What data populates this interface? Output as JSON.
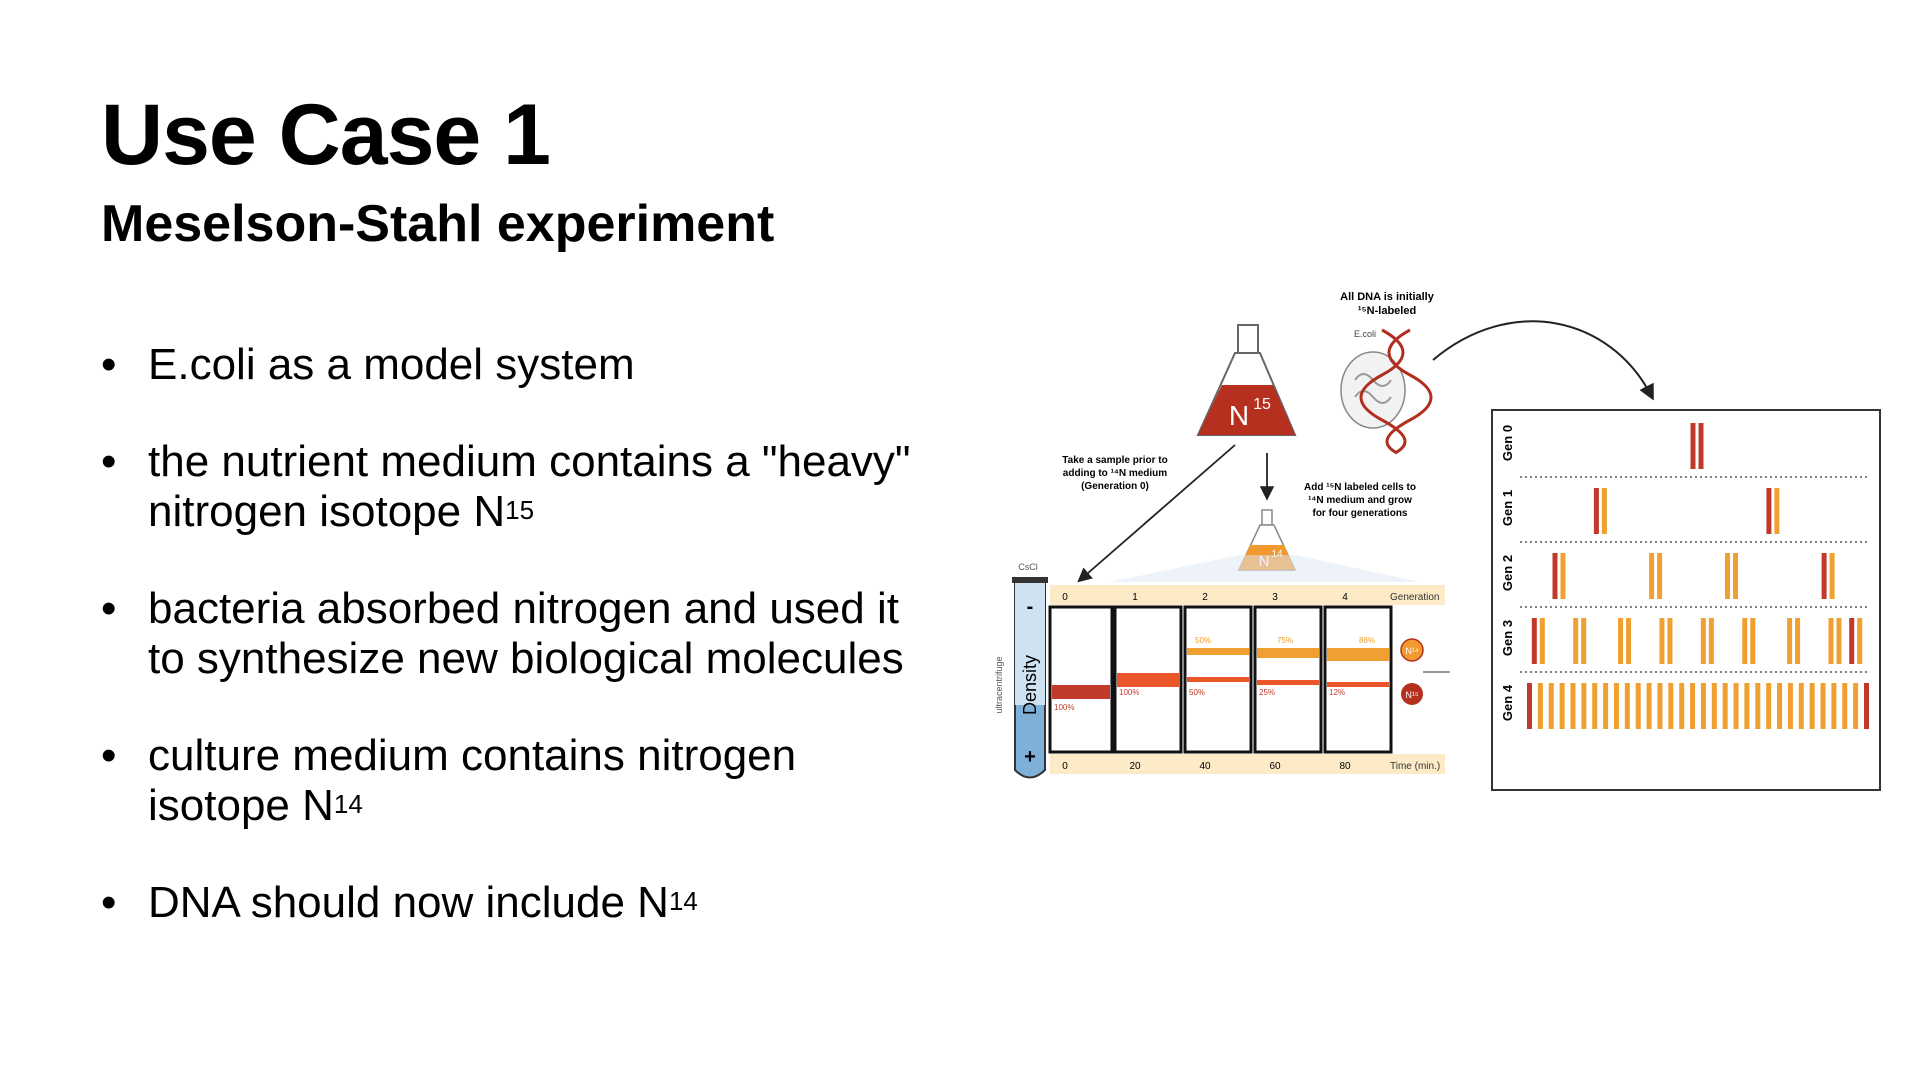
{
  "slide": {
    "title": "Use Case 1",
    "subtitle": "Meselson-Stahl experiment",
    "bullets": [
      {
        "text": "E.coli as a model system",
        "sup": ""
      },
      {
        "text": "the nutrient medium contains a \"heavy\" nitrogen isotope N",
        "sup": "15"
      },
      {
        "text": "bacteria absorbed nitrogen and used it to synthesize new biological molecules",
        "sup": ""
      },
      {
        "text": "culture medium contains nitrogen isotope N",
        "sup": "14"
      },
      {
        "text": "DNA should now include N",
        "sup": "14"
      }
    ]
  },
  "figure": {
    "top_note_1": "All DNA is initially",
    "top_note_2": "¹⁵N-labeled",
    "ecoli_label": "E.coli",
    "flask_n15": "N",
    "flask_n15_sup": "15",
    "flask_n14": "N",
    "flask_n14_sup": "14",
    "sample_note_1": "Take a sample prior to",
    "sample_note_2": "adding to ¹⁴N medium",
    "sample_note_3": "(Generation 0)",
    "add_note_1": "Add ¹⁵N labeled cells to",
    "add_note_2": "¹⁴N medium and grow",
    "add_note_3": "for four generations",
    "cscl": "CsCl",
    "ultracentrifuge": "ultracentrifuge",
    "density": "Density",
    "minus": "-",
    "plus": "+",
    "generation_label": "Generation",
    "generations": [
      "0",
      "1",
      "2",
      "3",
      "4"
    ],
    "time_label": "Time (min.)",
    "times": [
      "0",
      "20",
      "40",
      "60",
      "80"
    ],
    "upper_pct": [
      "50%",
      "75%",
      "88%"
    ],
    "lower_pct": [
      "100%",
      "100%",
      "50%",
      "25%",
      "12%"
    ],
    "legend_n14": "N¹⁴",
    "legend_n15": "N¹⁵",
    "gen_rows": [
      "Gen 0",
      "Gen 1",
      "Gen 2",
      "Gen 3",
      "Gen 4"
    ],
    "colors": {
      "heavy": "#c0392b",
      "light": "#f0a030",
      "accent": "#e8562a"
    }
  }
}
